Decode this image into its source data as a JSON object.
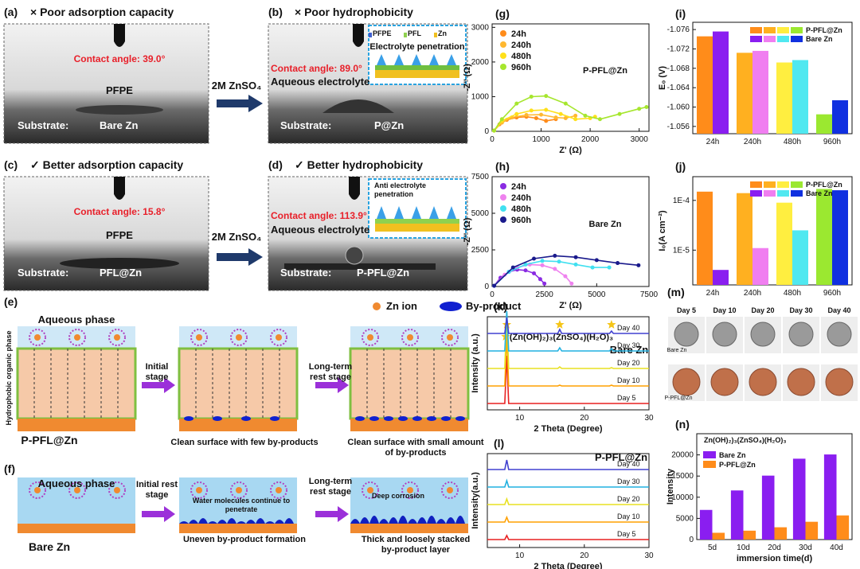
{
  "panels": {
    "a": {
      "label": "(a)",
      "title": "× Poor adsorption capacity",
      "contact_angle": "Contact angle: 39.0°",
      "layer": "PFPE",
      "substrate_label": "Substrate:",
      "substrate": "Bare Zn"
    },
    "b": {
      "label": "(b)",
      "title": "× Poor hydrophobicity",
      "contact_angle": "Contact angle: 89.0°",
      "layer": "Aqueous electrolyte",
      "substrate_label": "Substrate:",
      "substrate": "P@Zn",
      "inset": {
        "legend": [
          "PFPE",
          "PFL",
          "Zn"
        ],
        "caption": "Electrolyte penetration"
      }
    },
    "c": {
      "label": "(c)",
      "title": "✓ Better adsorption capacity",
      "contact_angle": "Contact angle: 15.8°",
      "layer": "PFPE",
      "substrate_label": "Substrate:",
      "substrate": "PFL@Zn"
    },
    "d": {
      "label": "(d)",
      "title": "✓ Better hydrophobicity",
      "contact_angle": "Contact angle: 113.9°",
      "layer": "Aqueous electrolyte",
      "substrate_label": "Substrate:",
      "substrate": "P-PFL@Zn",
      "inset": {
        "caption": [
          "Anti electrolyte",
          "penetration"
        ]
      }
    },
    "arrows": [
      "2M ZnSO₄",
      "2M ZnSO₄"
    ],
    "e": {
      "label": "(e)",
      "phase": "Aqueous phase",
      "organic": "Hydrophobic organic phase",
      "legend": [
        "Zn ion",
        "By-product"
      ],
      "substrate": "P-PFL@Zn",
      "stages": [
        [
          "Initial",
          "stage"
        ],
        [
          "Long-term",
          "rest stage"
        ]
      ],
      "captions": [
        [
          "Clean surface with few by-products"
        ],
        [
          "Clean surface with small amount",
          "of by-products"
        ]
      ]
    },
    "f": {
      "label": "(f)",
      "phase": "Aqueous phase",
      "substrate": "Bare Zn",
      "stages": [
        [
          "Initial rest",
          "stage"
        ],
        [
          "Long-term",
          "rest stage"
        ]
      ],
      "notes": [
        [
          "Water molecules continue to",
          "penetrate"
        ],
        [
          "Deep corrosion"
        ]
      ],
      "captions": [
        [
          "Uneven by-product formation"
        ],
        [
          "Thick and loosely stacked",
          "by-product layer"
        ]
      ]
    },
    "m": {
      "label": "(m)",
      "days": [
        "Day 5",
        "Day 10",
        "Day 20",
        "Day 30",
        "Day 40"
      ],
      "rows": [
        "Bare Zn",
        "P-PFL@Zn"
      ]
    }
  },
  "chart_data": [
    {
      "type": "line",
      "label": "(g)",
      "xlabel": "Z' (Ω)",
      "ylabel": "-Z'' (Ω)",
      "annotation": "P-PFL@Zn",
      "legend": "upper left",
      "xlim": [
        0,
        3200
      ],
      "xticks": [
        0,
        1000,
        2000,
        3000
      ],
      "ylim": [
        0,
        3100
      ],
      "yticks": [
        0,
        1000,
        2000,
        3000
      ],
      "series": [
        {
          "name": "24h",
          "color": "#ff8c1a",
          "x": [
            40,
            150,
            300,
            500,
            700,
            900,
            1100,
            1300
          ],
          "values": [
            20,
            200,
            330,
            400,
            420,
            380,
            300,
            350
          ]
        },
        {
          "name": "240h",
          "color": "#ffb830",
          "x": [
            40,
            200,
            400,
            700,
            1000,
            1300,
            1500,
            1700
          ],
          "values": [
            20,
            250,
            400,
            470,
            480,
            400,
            380,
            450
          ]
        },
        {
          "name": "480h",
          "color": "#ffe01a",
          "x": [
            40,
            200,
            500,
            800,
            1100,
            1400,
            1700,
            2000,
            2100
          ],
          "values": [
            20,
            300,
            500,
            600,
            620,
            500,
            350,
            380,
            420
          ]
        },
        {
          "name": "960h",
          "color": "#a6e62e",
          "x": [
            40,
            200,
            500,
            800,
            1100,
            1500,
            1900,
            2200,
            2600,
            3000,
            3150
          ],
          "values": [
            20,
            350,
            800,
            1000,
            1020,
            800,
            450,
            350,
            500,
            650,
            700
          ]
        }
      ]
    },
    {
      "type": "line",
      "label": "(h)",
      "xlabel": "Z' (Ω)",
      "ylabel": "-Z'' (Ω)",
      "annotation": "Bare Zn",
      "legend": "upper left",
      "xlim": [
        0,
        7500
      ],
      "xticks": [
        0,
        2500,
        5000,
        7500
      ],
      "ylim": [
        0,
        7500
      ],
      "yticks": [
        0,
        2500,
        5000,
        7500
      ],
      "series": [
        {
          "name": "24h",
          "color": "#8a2be2",
          "x": [
            100,
            400,
            800,
            1200,
            1600,
            2000,
            2300,
            2500
          ],
          "values": [
            50,
            600,
            1000,
            1150,
            1100,
            900,
            500,
            200
          ]
        },
        {
          "name": "240h",
          "color": "#ee82ee",
          "x": [
            100,
            600,
            1200,
            1800,
            2400,
            3000,
            3500,
            3800
          ],
          "values": [
            50,
            800,
            1300,
            1500,
            1450,
            1200,
            700,
            200
          ]
        },
        {
          "name": "480h",
          "color": "#40e0f0",
          "x": [
            100,
            800,
            1600,
            2400,
            3200,
            4000,
            4800,
            5600
          ],
          "values": [
            50,
            1000,
            1500,
            1750,
            1700,
            1500,
            1300,
            1300
          ]
        },
        {
          "name": "960h",
          "color": "#1a1a8c",
          "x": [
            100,
            1000,
            2000,
            3000,
            4000,
            5000,
            6000,
            7000
          ],
          "values": [
            50,
            1300,
            1900,
            2100,
            2000,
            1800,
            1600,
            1450
          ]
        }
      ]
    },
    {
      "type": "bar",
      "label": "(i)",
      "ylabel": "E₀ (V)",
      "legend": "upper right",
      "categories": [
        "24h",
        "240h",
        "480h",
        "960h"
      ],
      "ylim": [
        -1.0545,
        -1.0775
      ],
      "yticks": [
        -1.056,
        {
          "value": -1.06,
          "label": "-1.060"
        },
        -1.064,
        -1.068,
        -1.072,
        -1.076
      ],
      "series": [
        {
          "name": "P-PFL@Zn",
          "colors": [
            "#ff8c1a",
            "#ffb020",
            "#ffee40",
            "#9be830"
          ],
          "values": [
            -1.0746,
            -1.0712,
            -1.0692,
            -1.0585
          ]
        },
        {
          "name": "Bare Zn",
          "colors": [
            "#8a1ef0",
            "#f07ef0",
            "#50e8f0",
            "#1030e0"
          ],
          "values": [
            -1.0756,
            -1.0716,
            -1.0697,
            -1.0614
          ]
        }
      ]
    },
    {
      "type": "bar",
      "label": "(j)",
      "ylabel": "I₀(A cm⁻²)",
      "legend": "upper right",
      "log": true,
      "categories": [
        "24h",
        "240h",
        "480h",
        "960h"
      ],
      "ylim": [
        2e-06,
        0.0003
      ],
      "yticks": [
        {
          "value": 1e-05,
          "label": "1E-5"
        },
        {
          "value": 0.0001,
          "label": "1E-4"
        }
      ],
      "series": [
        {
          "name": "P-PFL@Zn",
          "colors": [
            "#ff8c1a",
            "#ffb020",
            "#ffee40",
            "#9be830"
          ],
          "values": [
            0.00015,
            0.00014,
            9e-05,
            0.00017
          ]
        },
        {
          "name": "Bare Zn",
          "colors": [
            "#8a1ef0",
            "#f07ef0",
            "#50e8f0",
            "#1030e0"
          ],
          "values": [
            4e-06,
            1.1e-05,
            2.5e-05,
            0.00016
          ]
        }
      ]
    },
    {
      "type": "line",
      "label": "(k)",
      "xlabel": "2 Theta (Degree)",
      "ylabel": "Intensity (a.u.)",
      "annotation": "(Zn(OH)₂)₃(ZnSO₄)(H₂O)₃",
      "sample": "Bare Zn",
      "legend": "inline",
      "xlim": [
        5,
        30
      ],
      "xticks": [
        10,
        20,
        30
      ],
      "x": [
        5,
        7.7,
        8.0,
        8.3,
        15.9,
        16.2,
        16.5,
        23.9,
        24.2,
        24.5,
        30
      ],
      "series": [
        {
          "name": "Day 5",
          "color": "#e82020",
          "values": [
            0,
            0,
            60,
            0,
            0,
            0,
            0,
            0,
            0,
            0,
            0
          ]
        },
        {
          "name": "Day 10",
          "color": "#ffa000",
          "values": [
            0,
            0,
            65,
            0,
            0,
            1,
            0,
            0,
            1,
            0,
            0
          ]
        },
        {
          "name": "Day 20",
          "color": "#e8e020",
          "values": [
            0,
            0,
            70,
            0,
            0,
            2,
            0,
            0,
            1,
            0,
            0
          ]
        },
        {
          "name": "Day 30",
          "color": "#20b0e0",
          "values": [
            0,
            0,
            50,
            0,
            0,
            4,
            0,
            0,
            3,
            0,
            0
          ]
        },
        {
          "name": "Day 40",
          "color": "#4040d0",
          "values": [
            0,
            0,
            20,
            0,
            0,
            5,
            0,
            0,
            3,
            0,
            0
          ]
        }
      ]
    },
    {
      "type": "line",
      "label": "(l)",
      "xlabel": "2 Theta (Degree)",
      "ylabel": "Intensity(a.u.)",
      "sample": "P-PFL@Zn",
      "legend": "inline",
      "xlim": [
        5,
        30
      ],
      "xticks": [
        10,
        20,
        30
      ],
      "x": [
        5,
        7.7,
        8.0,
        8.3,
        30
      ],
      "series": [
        {
          "name": "Day 5",
          "color": "#e82020",
          "values": [
            0,
            0,
            5,
            0,
            0
          ]
        },
        {
          "name": "Day 10",
          "color": "#ffa000",
          "values": [
            0,
            0,
            6,
            0,
            0
          ]
        },
        {
          "name": "Day 20",
          "color": "#e8e020",
          "values": [
            0,
            0,
            7,
            0,
            0
          ]
        },
        {
          "name": "Day 30",
          "color": "#20b0e0",
          "values": [
            0,
            0,
            8,
            0,
            0
          ]
        },
        {
          "name": "Day 40",
          "color": "#4040d0",
          "values": [
            0,
            0,
            12,
            0,
            0
          ]
        }
      ]
    },
    {
      "type": "bar",
      "label": "(n)",
      "xlabel": "immersion time(d)",
      "ylabel": "Intensity",
      "annotation": "Zn(OH)₂)₃(ZnSO₄)(H₂O)₃",
      "legend": "upper left",
      "categories": [
        "5d",
        "10d",
        "20d",
        "30d",
        "40d"
      ],
      "ylim": [
        0,
        25000
      ],
      "yticks": [
        0,
        5000,
        10000,
        15000,
        20000
      ],
      "series": [
        {
          "name": "Bare Zn",
          "color": "#8a1ef0",
          "values": [
            7000,
            11600,
            15100,
            19100,
            20100
          ]
        },
        {
          "name": "P-PFL@Zn",
          "color": "#ff8c1a",
          "values": [
            1600,
            2100,
            2900,
            4200,
            5700
          ]
        }
      ]
    }
  ]
}
